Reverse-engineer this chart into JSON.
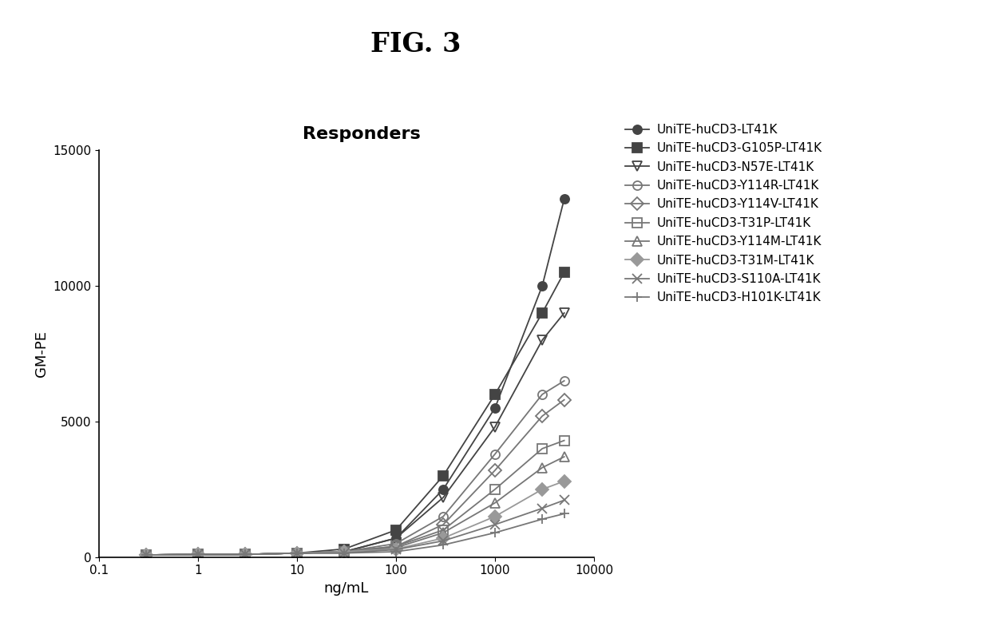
{
  "title": "FIG. 3",
  "subtitle": "Responders",
  "xlabel": "ng/mL",
  "ylabel": "GM-PE",
  "ylim": [
    0,
    15000
  ],
  "yticks": [
    0,
    5000,
    10000,
    15000
  ],
  "series": [
    {
      "label": "UniTE-huCD3-LT41K",
      "x": [
        0.3,
        1,
        3,
        10,
        30,
        100,
        300,
        1000,
        3000,
        5000
      ],
      "y": [
        80,
        100,
        100,
        150,
        200,
        700,
        2500,
        5500,
        10000,
        13200
      ],
      "marker": "o",
      "color": "#444444",
      "markersize": 8,
      "fillstyle": "full"
    },
    {
      "label": "UniTE-huCD3-G105P-LT41K",
      "x": [
        0.3,
        1,
        3,
        10,
        30,
        100,
        300,
        1000,
        3000,
        5000
      ],
      "y": [
        80,
        100,
        100,
        150,
        300,
        1000,
        3000,
        6000,
        9000,
        10500
      ],
      "marker": "s",
      "color": "#444444",
      "markersize": 8,
      "fillstyle": "full"
    },
    {
      "label": "UniTE-huCD3-N57E-LT41K",
      "x": [
        0.3,
        1,
        3,
        10,
        30,
        100,
        300,
        1000,
        3000,
        5000
      ],
      "y": [
        80,
        100,
        100,
        150,
        200,
        700,
        2200,
        4800,
        8000,
        9000
      ],
      "marker": "v",
      "color": "#444444",
      "markersize": 8,
      "fillstyle": "none"
    },
    {
      "label": "UniTE-huCD3-Y114R-LT41K",
      "x": [
        0.3,
        1,
        3,
        10,
        30,
        100,
        300,
        1000,
        3000,
        5000
      ],
      "y": [
        80,
        100,
        100,
        150,
        200,
        500,
        1500,
        3800,
        6000,
        6500
      ],
      "marker": "o",
      "color": "#777777",
      "markersize": 8,
      "fillstyle": "none"
    },
    {
      "label": "UniTE-huCD3-Y114V-LT41K",
      "x": [
        0.3,
        1,
        3,
        10,
        30,
        100,
        300,
        1000,
        3000,
        5000
      ],
      "y": [
        80,
        100,
        100,
        150,
        200,
        400,
        1200,
        3200,
        5200,
        5800
      ],
      "marker": "D",
      "color": "#777777",
      "markersize": 8,
      "fillstyle": "none"
    },
    {
      "label": "UniTE-huCD3-T31P-LT41K",
      "x": [
        0.3,
        1,
        3,
        10,
        30,
        100,
        300,
        1000,
        3000,
        5000
      ],
      "y": [
        80,
        100,
        100,
        150,
        200,
        400,
        1000,
        2500,
        4000,
        4300
      ],
      "marker": "s",
      "color": "#777777",
      "markersize": 8,
      "fillstyle": "none"
    },
    {
      "label": "UniTE-huCD3-Y114M-LT41K",
      "x": [
        0.3,
        1,
        3,
        10,
        30,
        100,
        300,
        1000,
        3000,
        5000
      ],
      "y": [
        80,
        100,
        100,
        150,
        200,
        350,
        900,
        2000,
        3300,
        3700
      ],
      "marker": "^",
      "color": "#777777",
      "markersize": 8,
      "fillstyle": "none"
    },
    {
      "label": "UniTE-huCD3-T31M-LT41K",
      "x": [
        0.3,
        1,
        3,
        10,
        30,
        100,
        300,
        1000,
        3000,
        5000
      ],
      "y": [
        80,
        100,
        100,
        150,
        200,
        300,
        700,
        1500,
        2500,
        2800
      ],
      "marker": "D",
      "color": "#999999",
      "markersize": 8,
      "fillstyle": "full"
    },
    {
      "label": "UniTE-huCD3-S110A-LT41K",
      "x": [
        0.3,
        1,
        3,
        10,
        30,
        100,
        300,
        1000,
        3000,
        5000
      ],
      "y": [
        80,
        100,
        100,
        150,
        150,
        280,
        600,
        1200,
        1800,
        2100
      ],
      "marker": "x",
      "color": "#777777",
      "markersize": 8,
      "fillstyle": "full"
    },
    {
      "label": "UniTE-huCD3-H101K-LT41K",
      "x": [
        0.3,
        1,
        3,
        10,
        30,
        100,
        300,
        1000,
        3000,
        5000
      ],
      "y": [
        80,
        100,
        100,
        150,
        150,
        200,
        450,
        900,
        1400,
        1600
      ],
      "marker": "+",
      "color": "#777777",
      "markersize": 9,
      "fillstyle": "full"
    }
  ],
  "background_color": "#ffffff",
  "title_fontsize": 24,
  "subtitle_fontsize": 16,
  "axis_label_fontsize": 13,
  "tick_fontsize": 11,
  "legend_fontsize": 11
}
